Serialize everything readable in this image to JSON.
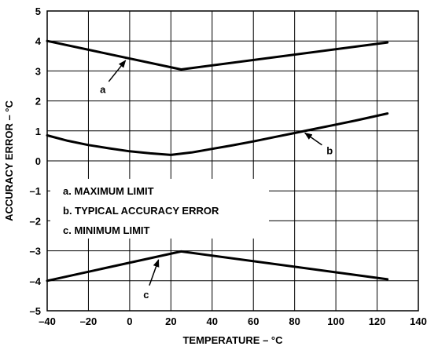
{
  "chart_data": {
    "type": "line",
    "xlabel": "TEMPERATURE – °C",
    "ylabel": "ACCURACY ERROR – °C",
    "xlim": [
      -40,
      140
    ],
    "ylim": [
      -5,
      5
    ],
    "x_ticks": [
      -40,
      -20,
      0,
      20,
      40,
      60,
      80,
      100,
      120,
      140
    ],
    "x_tick_labels": [
      "–40",
      "–20",
      "0",
      "20",
      "40",
      "60",
      "80",
      "100",
      "120",
      "140"
    ],
    "y_ticks": [
      5,
      4,
      3,
      2,
      1,
      0,
      -1,
      -2,
      -3,
      -4,
      -5
    ],
    "y_tick_labels": [
      "5",
      "4",
      "3",
      "2",
      "1",
      "0",
      "–1",
      "–2",
      "–3",
      "–4",
      "–5"
    ],
    "grid": true,
    "legend_position": "center-left",
    "series": [
      {
        "key": "a",
        "name": "MAXIMUM LIMIT",
        "x": [
          -40,
          25,
          125
        ],
        "y": [
          4.0,
          3.05,
          3.95
        ]
      },
      {
        "key": "b",
        "name": "TYPICAL ACCURACY ERROR",
        "x": [
          -40,
          -30,
          -20,
          -10,
          0,
          10,
          20,
          30,
          40,
          50,
          60,
          70,
          80,
          90,
          100,
          110,
          125
        ],
        "y": [
          0.85,
          0.67,
          0.53,
          0.42,
          0.32,
          0.25,
          0.2,
          0.28,
          0.4,
          0.52,
          0.65,
          0.79,
          0.93,
          1.07,
          1.21,
          1.35,
          1.58
        ]
      },
      {
        "key": "c",
        "name": "MINIMUM LIMIT",
        "x": [
          -40,
          25,
          125
        ],
        "y": [
          -4.0,
          -3.02,
          -3.95
        ]
      }
    ],
    "legend": [
      {
        "label": "a.  MAXIMUM LIMIT"
      },
      {
        "label": "b.  TYPICAL ACCURACY ERROR"
      },
      {
        "label": "c.  MINIMUM LIMIT"
      }
    ],
    "callouts": [
      {
        "label": "a",
        "series": "a",
        "point": [
          -2,
          3.35
        ],
        "label_at": [
          -13,
          2.4
        ]
      },
      {
        "label": "b",
        "series": "b",
        "point": [
          85,
          0.93
        ],
        "label_at": [
          97,
          0.35
        ]
      },
      {
        "label": "c",
        "series": "c",
        "point": [
          14,
          -3.3
        ],
        "label_at": [
          8,
          -4.45
        ]
      }
    ]
  }
}
